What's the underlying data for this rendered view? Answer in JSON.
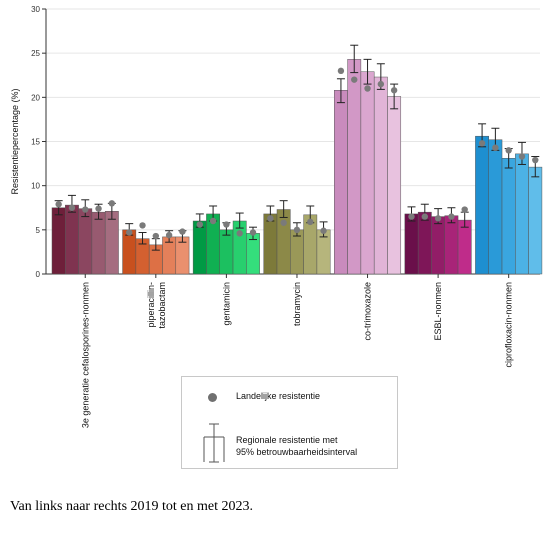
{
  "chart_data": {
    "type": "bar",
    "ylabel": "Resistentiepercentage (%)",
    "ylim": [
      0,
      30
    ],
    "yticks": [
      0,
      5,
      10,
      15,
      20,
      25,
      30
    ],
    "grid": true,
    "years": [
      "2019",
      "2020",
      "2021",
      "2022",
      "2023"
    ],
    "categories": [
      {
        "label": [
          "3e generatie cefalosporines-nonmen"
        ],
        "colors": [
          "#6e1f3a",
          "#7f3350",
          "#8b4660",
          "#985a70",
          "#a56d80"
        ],
        "regional": [
          7.5,
          7.8,
          7.4,
          7.0,
          7.1
        ],
        "ci": [
          [
            6.7,
            8.3
          ],
          [
            7.0,
            8.9
          ],
          [
            6.5,
            8.4
          ],
          [
            6.2,
            7.9
          ],
          [
            6.2,
            8.0
          ]
        ],
        "national": [
          7.9,
          7.5,
          7.3,
          7.4,
          8.0
        ]
      },
      {
        "label": [
          "piperacillin-",
          "tazobactam"
        ],
        "colors": [
          "#c8501e",
          "#d46030",
          "#dd7045",
          "#e4805a",
          "#ea906e"
        ],
        "regional": [
          5.0,
          4.0,
          3.3,
          4.2,
          4.2
        ],
        "ci": [
          [
            4.4,
            5.7
          ],
          [
            3.4,
            4.7
          ],
          [
            2.7,
            4.0
          ],
          [
            3.6,
            4.9
          ],
          [
            3.6,
            4.9
          ]
        ],
        "national": [
          4.7,
          5.5,
          4.3,
          4.4,
          4.8
        ]
      },
      {
        "label": [
          "gentamicin"
        ],
        "colors": [
          "#009a44",
          "#10b052",
          "#1cc060",
          "#28cf6e",
          "#34de7c"
        ],
        "regional": [
          6.0,
          6.8,
          5.0,
          6.0,
          4.6
        ],
        "ci": [
          [
            5.3,
            6.8
          ],
          [
            6.0,
            7.7
          ],
          [
            4.4,
            5.8
          ],
          [
            5.2,
            6.9
          ],
          [
            3.9,
            5.3
          ]
        ],
        "national": [
          5.6,
          6.0,
          5.6,
          4.6,
          4.7
        ]
      },
      {
        "label": [
          "tobramycin"
        ],
        "colors": [
          "#7d7a3a",
          "#8c8948",
          "#9a9858",
          "#a8a76a",
          "#b6b57c"
        ],
        "regional": [
          6.8,
          7.3,
          5.0,
          6.7,
          5.0
        ],
        "ci": [
          [
            6.0,
            7.7
          ],
          [
            6.4,
            8.3
          ],
          [
            4.3,
            5.8
          ],
          [
            5.8,
            7.7
          ],
          [
            4.2,
            5.9
          ]
        ],
        "national": [
          6.3,
          5.8,
          5.0,
          5.9,
          4.9
        ]
      },
      {
        "label": [
          "co-trimoxazole"
        ],
        "colors": [
          "#c98bbd",
          "#d298c6",
          "#daa6cf",
          "#e1b4d7",
          "#e8c2df"
        ],
        "regional": [
          20.8,
          24.3,
          22.9,
          22.3,
          20.1
        ],
        "ci": [
          [
            19.4,
            22.1
          ],
          [
            22.8,
            25.9
          ],
          [
            21.5,
            24.3
          ],
          [
            20.9,
            23.8
          ],
          [
            18.7,
            21.5
          ]
        ],
        "national": [
          23.0,
          22.0,
          21.0,
          21.5,
          20.8
        ]
      },
      {
        "label": [
          "ESBL-nonmen"
        ],
        "colors": [
          "#6a0f4a",
          "#7e1658",
          "#921d67",
          "#a82478",
          "#bf2c8a"
        ],
        "regional": [
          6.8,
          7.0,
          6.5,
          6.6,
          6.1
        ],
        "ci": [
          [
            6.0,
            7.6
          ],
          [
            6.1,
            7.9
          ],
          [
            5.7,
            7.4
          ],
          [
            5.8,
            7.5
          ],
          [
            5.3,
            7.0
          ]
        ],
        "national": [
          6.5,
          6.5,
          6.3,
          6.5,
          7.3
        ]
      },
      {
        "label": [
          "ciprofloxacin-nonmen"
        ],
        "colors": [
          "#1e8fd0",
          "#2a9ad8",
          "#3aa6df",
          "#4cb2e5",
          "#60bdea"
        ],
        "regional": [
          15.6,
          15.2,
          13.1,
          13.6,
          12.1
        ],
        "ci": [
          [
            14.4,
            17.0
          ],
          [
            14.0,
            16.5
          ],
          [
            12.0,
            14.2
          ],
          [
            12.4,
            14.9
          ],
          [
            11.0,
            13.3
          ]
        ],
        "national": [
          14.8,
          14.3,
          14.0,
          13.3,
          12.9
        ]
      }
    ],
    "legend": {
      "national": "Landelijke resistentie",
      "regional_line1": "Regionale resistentie met",
      "regional_line2": "95% betrouwbaarheidsinterval"
    }
  },
  "caption": "Van links naar rechts 2019 tot en met 2023."
}
